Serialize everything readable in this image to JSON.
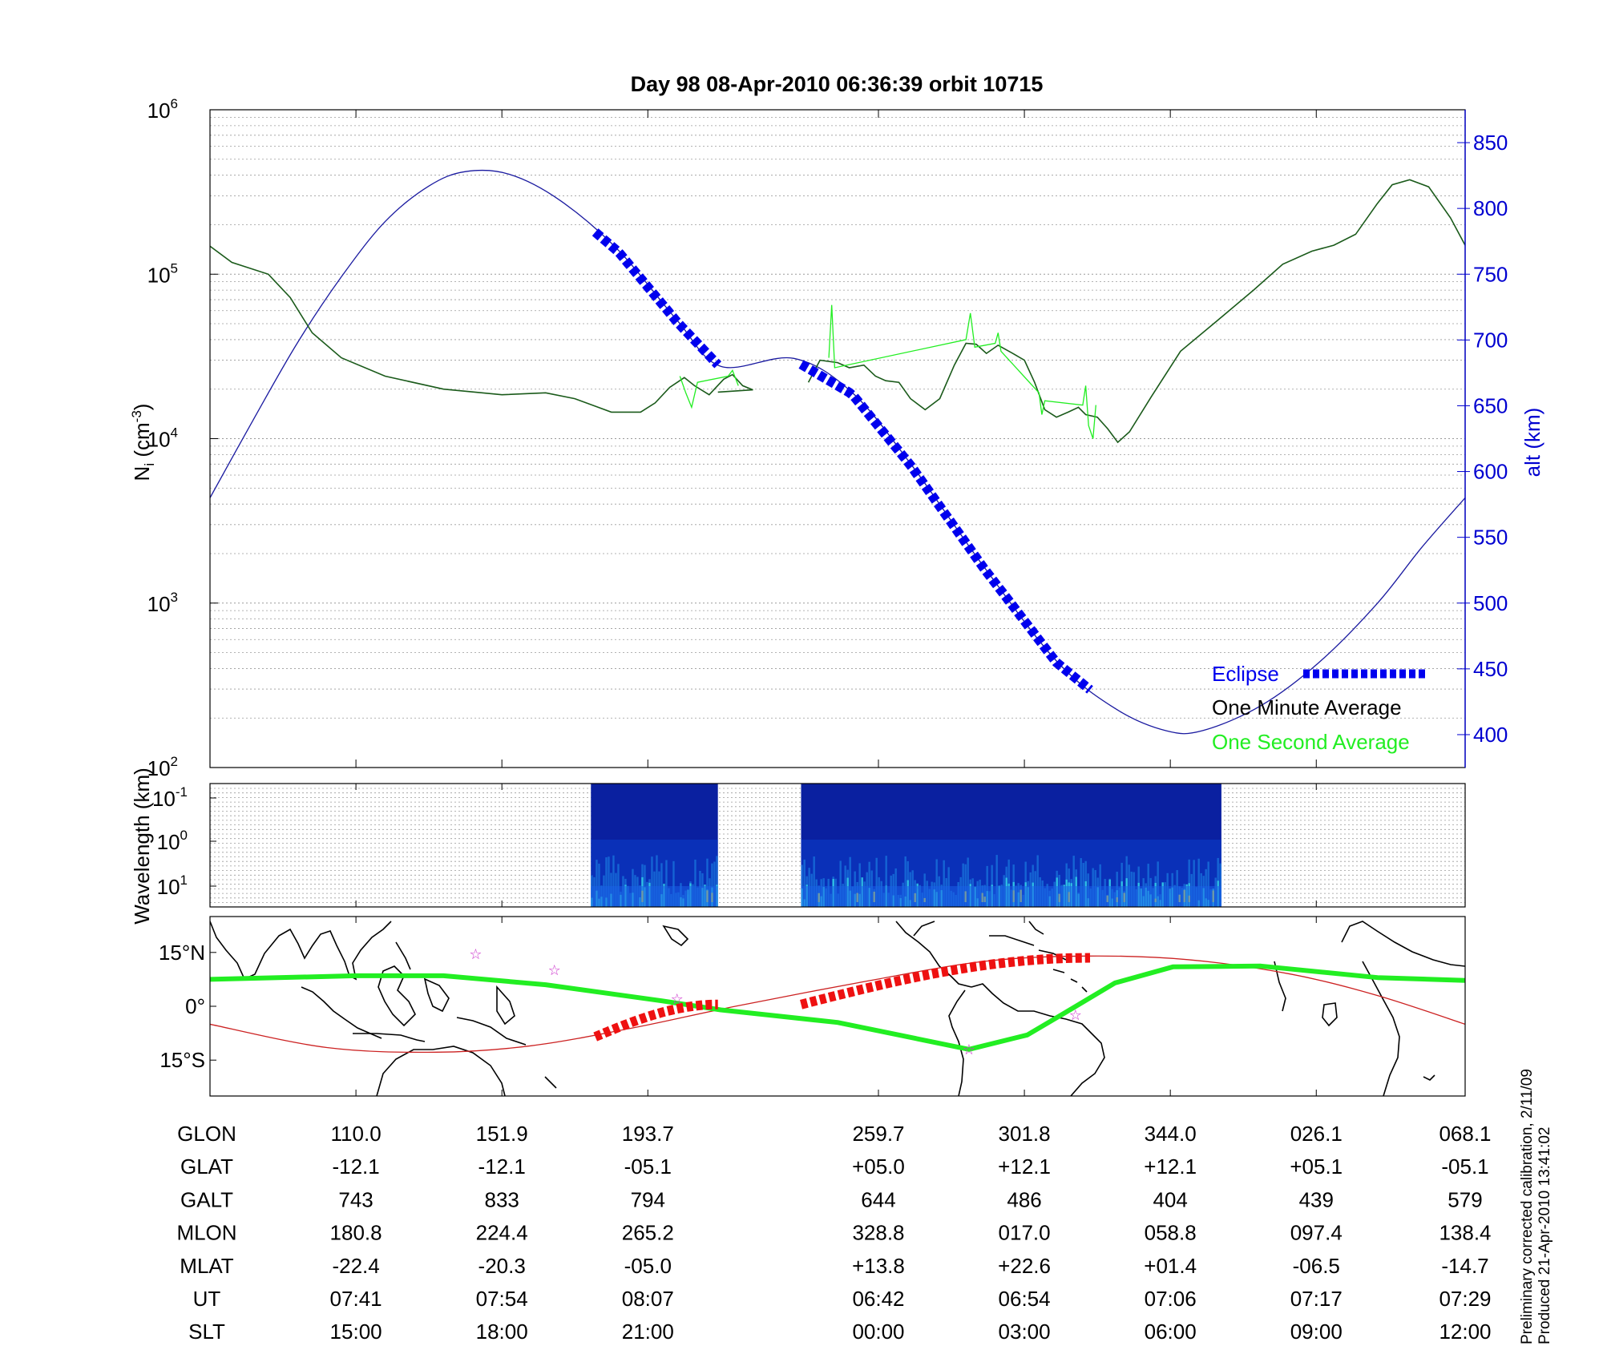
{
  "title": "Day 98  08-Apr-2010 06:36:39   orbit 10715",
  "side_note": [
    "Preliminary corrected calibration, 2/11/09",
    "Produced 21-Apr-2010 13:41:02"
  ],
  "colors": {
    "eclipse": "#0000ee",
    "minute_avg": "#1a5a1a",
    "second_avg": "#22ee22",
    "altitude": "#1a1aa0",
    "track": "#22ee22",
    "mag_equator": "#cc2222",
    "eclipse_track": "#ee1111",
    "axis_right": "#0000d0",
    "stars": "#cc33cc"
  },
  "chart_data": [
    {
      "type": "line",
      "panel": "density",
      "title": "Day 98  08-Apr-2010 06:36:39   orbit 10715",
      "ylabel": "N",
      "ylabel_sub": "i",
      "ylabel_unit": "(cm",
      "ylabel_exp": "-3",
      "ylabel_close": ")",
      "yscale": "log",
      "ylim": [
        100,
        1000000
      ],
      "yticks": [
        {
          "base": "10",
          "exp": "2"
        },
        {
          "base": "10",
          "exp": "3"
        },
        {
          "base": "10",
          "exp": "4"
        },
        {
          "base": "10",
          "exp": "5"
        },
        {
          "base": "10",
          "exp": "6"
        }
      ],
      "y2label": "alt (km)",
      "y2lim": [
        375,
        875
      ],
      "y2ticks": [
        "400",
        "450",
        "500",
        "550",
        "600",
        "650",
        "700",
        "750",
        "800",
        "850"
      ],
      "xlim": [
        0,
        8.6
      ],
      "grid": true,
      "legend": {
        "position": "bottom-right",
        "entries": [
          "Eclipse",
          "One Minute Average",
          "One Second Average"
        ]
      },
      "series": [
        {
          "name": "One Minute Average",
          "segments": [
            [
              [
                0,
                148000
              ],
              [
                0.15,
                118000
              ],
              [
                0.4,
                100000
              ],
              [
                0.55,
                72000
              ],
              [
                0.7,
                44000
              ],
              [
                0.9,
                31000
              ],
              [
                1.2,
                24000
              ],
              [
                1.6,
                20000
              ],
              [
                2.0,
                18500
              ],
              [
                2.3,
                19000
              ],
              [
                2.5,
                17500
              ],
              [
                2.75,
                14500
              ],
              [
                2.95,
                14500
              ],
              [
                3.05,
                16500
              ],
              [
                3.15,
                20500
              ],
              [
                3.25,
                23500
              ],
              [
                3.32,
                21000
              ],
              [
                3.42,
                18500
              ],
              [
                3.52,
                23000
              ],
              [
                3.58,
                24500
              ],
              [
                3.65,
                21000
              ],
              [
                3.72,
                19800
              ],
              [
                3.48,
                19200
              ]
            ],
            [
              [
                4.1,
                22000
              ],
              [
                4.18,
                30000
              ],
              [
                4.3,
                29000
              ],
              [
                4.38,
                27000
              ],
              [
                4.48,
                28000
              ],
              [
                4.56,
                24000
              ],
              [
                4.63,
                22500
              ],
              [
                4.72,
                22000
              ],
              [
                4.8,
                17500
              ],
              [
                4.9,
                15000
              ],
              [
                5.0,
                17500
              ],
              [
                5.1,
                28000
              ],
              [
                5.18,
                38000
              ],
              [
                5.25,
                37500
              ],
              [
                5.32,
                33000
              ],
              [
                5.4,
                37000
              ],
              [
                5.5,
                33000
              ],
              [
                5.58,
                30000
              ],
              [
                5.65,
                22000
              ],
              [
                5.72,
                15000
              ],
              [
                5.8,
                13500
              ],
              [
                5.88,
                14500
              ],
              [
                5.95,
                15500
              ],
              [
                6.0,
                14000
              ],
              [
                6.08,
                13500
              ],
              [
                6.15,
                11500
              ],
              [
                6.22,
                9500
              ],
              [
                6.3,
                11000
              ],
              [
                6.45,
                18000
              ],
              [
                6.65,
                34000
              ],
              [
                6.9,
                52000
              ],
              [
                7.15,
                80000
              ],
              [
                7.35,
                115000
              ],
              [
                7.55,
                138000
              ],
              [
                7.7,
                150000
              ],
              [
                7.85,
                175000
              ],
              [
                8.0,
                270000
              ],
              [
                8.1,
                350000
              ],
              [
                8.22,
                375000
              ],
              [
                8.35,
                340000
              ],
              [
                8.5,
                220000
              ],
              [
                8.6,
                150000
              ]
            ]
          ]
        },
        {
          "name": "One Second Average",
          "segments": [
            [
              [
                3.22,
                24000
              ],
              [
                3.26,
                19000
              ],
              [
                3.3,
                15500
              ],
              [
                3.34,
                22000
              ],
              [
                3.55,
                24000
              ],
              [
                3.58,
                26000
              ],
              [
                3.62,
                21000
              ]
            ],
            [
              [
                4.24,
                31000
              ],
              [
                4.26,
                65000
              ],
              [
                4.28,
                27000
              ],
              [
                5.18,
                40000
              ],
              [
                5.21,
                58000
              ],
              [
                5.24,
                36000
              ],
              [
                5.38,
                38000
              ],
              [
                5.4,
                44000
              ],
              [
                5.42,
                34000
              ],
              [
                5.68,
                19000
              ],
              [
                5.7,
                14000
              ],
              [
                5.72,
                17000
              ],
              [
                5.98,
                16000
              ],
              [
                6.0,
                21000
              ],
              [
                6.02,
                12000
              ],
              [
                6.05,
                10000
              ],
              [
                6.07,
                16000
              ]
            ]
          ]
        }
      ],
      "altitude": {
        "name": "alt (km)",
        "points": [
          [
            0,
            580
          ],
          [
            0.3,
            640
          ],
          [
            0.6,
            698
          ],
          [
            0.9,
            748
          ],
          [
            1.2,
            790
          ],
          [
            1.5,
            817
          ],
          [
            1.75,
            828
          ],
          [
            2.05,
            826
          ],
          [
            2.4,
            806
          ],
          [
            2.8,
            768
          ],
          [
            3.2,
            715
          ],
          [
            3.5,
            680
          ],
          [
            4.0,
            686
          ],
          [
            4.4,
            660
          ],
          [
            4.8,
            606
          ],
          [
            5.3,
            528
          ],
          [
            5.8,
            456
          ],
          [
            6.2,
            420
          ],
          [
            6.55,
            403
          ],
          [
            6.8,
            403
          ],
          [
            7.2,
            422
          ],
          [
            7.6,
            455
          ],
          [
            8.0,
            500
          ],
          [
            8.3,
            542
          ],
          [
            8.6,
            580
          ]
        ]
      },
      "eclipse": [
        {
          "x": [
            2.64,
            3.48
          ]
        },
        {
          "x": [
            4.05,
            6.03
          ]
        }
      ]
    },
    {
      "type": "heatmap",
      "panel": "spectrogram",
      "ylabel": "Wavelength (km)",
      "yticks": [
        {
          "base": "10",
          "exp": "-1"
        },
        {
          "base": "10",
          "exp": "0"
        },
        {
          "base": "10",
          "exp": "1"
        }
      ],
      "data_x": [
        [
          2.61,
          3.48
        ],
        [
          4.05,
          6.93
        ]
      ]
    },
    {
      "type": "line",
      "panel": "map",
      "yticks": [
        "15°N",
        "0°",
        "15°S"
      ],
      "ylim": [
        -25,
        25
      ],
      "series": [
        {
          "name": "track",
          "points": [
            [
              0,
              7.5
            ],
            [
              1.0,
              8.5
            ],
            [
              1.6,
              8.5
            ],
            [
              2.3,
              6
            ],
            [
              3.1,
              1.5
            ],
            [
              3.5,
              -1
            ],
            [
              4.3,
              -4.5
            ],
            [
              5.2,
              -12
            ],
            [
              5.6,
              -8
            ],
            [
              5.85,
              -2
            ],
            [
              6.2,
              6.5
            ],
            [
              6.6,
              11
            ],
            [
              7.2,
              11.2
            ],
            [
              8.0,
              8
            ],
            [
              8.6,
              7.2
            ]
          ]
        },
        {
          "name": "magnetic equator",
          "points": [
            [
              0,
              -5
            ],
            [
              0.8,
              -11.5
            ],
            [
              1.55,
              -12.8
            ],
            [
              2.2,
              -11
            ],
            [
              2.9,
              -6
            ],
            [
              3.6,
              0
            ],
            [
              4.5,
              7
            ],
            [
              5.3,
              12.5
            ],
            [
              6.0,
              14
            ],
            [
              6.7,
              13
            ],
            [
              7.4,
              9
            ],
            [
              8.0,
              3
            ],
            [
              8.6,
              -5
            ]
          ]
        }
      ],
      "eclipse_track": [
        {
          "x": [
            2.64,
            3.48
          ],
          "lat": [
            -8.5,
            0.5
          ]
        },
        {
          "x": [
            4.05,
            6.03
          ],
          "lat": [
            0.5,
            13.5
          ]
        }
      ],
      "stars": [
        [
          1.82,
          14.5
        ],
        [
          2.36,
          10
        ],
        [
          3.2,
          2
        ],
        [
          5.2,
          -12
        ],
        [
          5.93,
          -2.5
        ]
      ]
    }
  ],
  "table": {
    "row_labels": [
      "GLON",
      "GLAT",
      "GALT",
      "MLON",
      "MLAT",
      "UT",
      "SLT"
    ],
    "columns": [
      {
        "x": 1,
        "values": [
          "110.0",
          "-12.1",
          "743",
          "180.8",
          "-22.4",
          "07:41",
          "15:00"
        ]
      },
      {
        "x": 2,
        "values": [
          "151.9",
          "-12.1",
          "833",
          "224.4",
          "-20.3",
          "07:54",
          "18:00"
        ]
      },
      {
        "x": 3,
        "values": [
          "193.7",
          "-05.1",
          "794",
          "265.2",
          "-05.0",
          "08:07",
          "21:00"
        ]
      },
      {
        "x": 4.58,
        "values": [
          "259.7",
          "+05.0",
          "644",
          "328.8",
          "+13.8",
          "06:42",
          "00:00"
        ]
      },
      {
        "x": 5.58,
        "values": [
          "301.8",
          "+12.1",
          "486",
          "017.0",
          "+22.6",
          "06:54",
          "03:00"
        ]
      },
      {
        "x": 6.58,
        "values": [
          "344.0",
          "+12.1",
          "404",
          "058.8",
          "+01.4",
          "07:06",
          "06:00"
        ]
      },
      {
        "x": 7.58,
        "values": [
          "026.1",
          "+05.1",
          "439",
          "097.4",
          "-06.5",
          "07:17",
          "09:00"
        ]
      },
      {
        "x": 8.6,
        "values": [
          "068.1",
          "-05.1",
          "579",
          "138.4",
          "-14.7",
          "07:29",
          "12:00"
        ]
      }
    ]
  }
}
